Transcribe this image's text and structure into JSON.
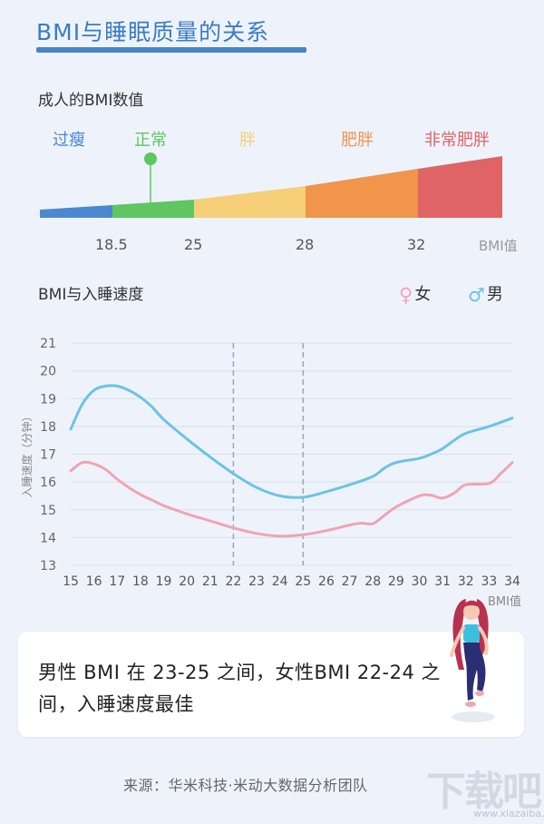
{
  "title": "BMI与睡眠质量的关系",
  "bmi_section": {
    "title": "成人的BMI数值",
    "categories": [
      {
        "label": "过瘦",
        "color": "#4b88d1"
      },
      {
        "label": "正常",
        "color": "#5fc662"
      },
      {
        "label": "胖",
        "color": "#f6cf78"
      },
      {
        "label": "肥胖",
        "color": "#f0954a"
      },
      {
        "label": "非常肥胖",
        "color": "#e06465"
      }
    ],
    "ticks": [
      "18.5",
      "25",
      "28",
      "32"
    ],
    "unit": "BMI值"
  },
  "chart_data": {
    "type": "line",
    "title": "BMI与入睡速度",
    "xlabel": "BMI值",
    "ylabel": "入睡速度（分钟）",
    "xlim": [
      15,
      34
    ],
    "ylim": [
      13,
      21
    ],
    "x_ticks": [
      15,
      16,
      17,
      18,
      19,
      20,
      21,
      22,
      23,
      24,
      25,
      26,
      27,
      28,
      29,
      30,
      31,
      32,
      33,
      34
    ],
    "y_ticks": [
      13,
      14,
      15,
      16,
      17,
      18,
      19,
      20,
      21
    ],
    "reference_lines_x": [
      22,
      25
    ],
    "series": [
      {
        "name": "女",
        "symbol": "♀",
        "color": "#f2a3b3",
        "x": [
          15,
          15.5,
          16,
          16.5,
          17,
          17.5,
          18,
          18.5,
          19,
          19.5,
          20,
          21,
          22,
          23,
          24,
          25,
          26,
          27,
          27.5,
          28,
          28.5,
          29,
          30,
          30.5,
          31,
          31.5,
          32,
          33,
          33.5,
          34
        ],
        "y": [
          16.4,
          16.7,
          16.65,
          16.45,
          16.1,
          15.8,
          15.55,
          15.35,
          15.15,
          15.0,
          14.85,
          14.6,
          14.35,
          14.15,
          14.05,
          14.1,
          14.25,
          14.45,
          14.52,
          14.5,
          14.8,
          15.1,
          15.5,
          15.52,
          15.42,
          15.6,
          15.9,
          15.95,
          16.3,
          16.7
        ]
      },
      {
        "name": "男",
        "symbol": "♂",
        "color": "#6cc3e4",
        "x": [
          15,
          15.5,
          16,
          16.5,
          17,
          17.5,
          18,
          18.5,
          19,
          20,
          21,
          22,
          23,
          24,
          25,
          26,
          27,
          28,
          28.5,
          29,
          30,
          30.5,
          31,
          31.5,
          32,
          33,
          34
        ],
        "y": [
          17.9,
          18.8,
          19.3,
          19.45,
          19.45,
          19.3,
          19.05,
          18.7,
          18.25,
          17.55,
          16.9,
          16.3,
          15.8,
          15.5,
          15.45,
          15.65,
          15.9,
          16.2,
          16.5,
          16.7,
          16.85,
          17.0,
          17.2,
          17.5,
          17.75,
          18.0,
          18.3
        ]
      }
    ]
  },
  "summary": "男性 BMI 在 23-25 之间，女性BMI 22-24 之间，入睡速度最佳",
  "source": "来源：华米科技·米动大数据分析团队",
  "watermark": {
    "main": "下载吧",
    "sub": "www.xiazaiba.com"
  }
}
